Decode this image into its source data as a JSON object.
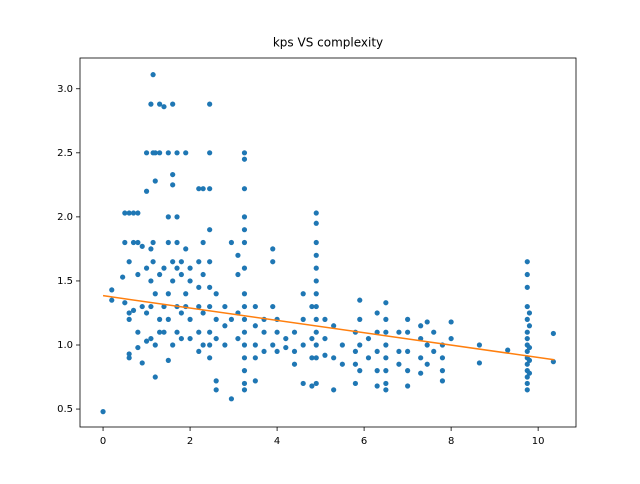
{
  "chart_data": {
    "type": "scatter",
    "title": "kps VS complexity",
    "xlim": [
      -0.53,
      10.87
    ],
    "xticks": [
      0,
      2,
      4,
      6,
      8,
      10
    ],
    "ylim": [
      0.36,
      3.24
    ],
    "yticks": [
      0.5,
      {
        "value": 1,
        "label": "1.0"
      },
      1.5,
      {
        "value": 2,
        "label": "2.0"
      },
      2.5,
      {
        "value": 3,
        "label": "3.0"
      }
    ],
    "series": [
      {
        "type": "scatter",
        "color": "#1f77b4",
        "x": [
          0,
          0.2,
          0.2,
          0.45,
          0.5,
          0.5,
          0.5,
          0.6,
          0.6,
          0.6,
          0.6,
          0.6,
          0.6,
          0.7,
          0.7,
          0.7,
          0.8,
          0.8,
          0.8,
          0.8,
          0.8,
          0.9,
          0.9,
          0.9,
          1.0,
          1.0,
          1.0,
          1.0,
          1.0,
          1.1,
          1.1,
          1.1,
          1.1,
          1.1,
          1.15,
          1.15,
          1.15,
          1.15,
          1.2,
          1.2,
          1.2,
          1.2,
          1.2,
          1.3,
          1.3,
          1.3,
          1.3,
          1.3,
          1.4,
          1.4,
          1.4,
          1.4,
          1.5,
          1.5,
          1.5,
          1.5,
          1.5,
          1.5,
          1.6,
          1.6,
          1.6,
          1.6,
          1.6,
          1.6,
          1.7,
          1.7,
          1.7,
          1.7,
          1.7,
          1.7,
          1.8,
          1.8,
          1.8,
          1.8,
          1.9,
          1.9,
          1.9,
          1.9,
          2.0,
          2.0,
          2.0,
          2.0,
          2.2,
          2.2,
          2.2,
          2.2,
          2.2,
          2.2,
          2.3,
          2.3,
          2.3,
          2.3,
          2.3,
          2.45,
          2.45,
          2.45,
          2.45,
          2.45,
          2.45,
          2.45,
          2.45,
          2.45,
          2.45,
          2.6,
          2.6,
          2.6,
          2.6,
          2.6,
          2.8,
          2.8,
          2.8,
          2.95,
          2.95,
          2.95,
          3.1,
          3.1,
          3.1,
          3.1,
          3.25,
          3.25,
          3.25,
          3.25,
          3.25,
          3.25,
          3.25,
          3.25,
          3.25,
          3.25,
          3.25,
          3.25,
          3.25,
          3.25,
          3.25,
          3.25,
          3.5,
          3.5,
          3.5,
          3.5,
          3.5,
          3.7,
          3.7,
          3.7,
          3.9,
          3.9,
          3.9,
          3.9,
          4.0,
          4.0,
          4.0,
          4.2,
          4.2,
          4.4,
          4.4,
          4.4,
          4.6,
          4.6,
          4.6,
          4.6,
          4.8,
          4.8,
          4.8,
          4.8,
          4.9,
          4.9,
          4.9,
          4.9,
          4.9,
          4.9,
          4.9,
          4.9,
          4.9,
          4.9,
          4.9,
          4.9,
          4.9,
          5.1,
          5.1,
          5.1,
          5.3,
          5.3,
          5.3,
          5.5,
          5.5,
          5.8,
          5.8,
          5.8,
          5.8,
          5.9,
          5.9,
          5.9,
          5.9,
          6.1,
          6.1,
          6.3,
          6.3,
          6.3,
          6.3,
          6.3,
          6.5,
          6.5,
          6.5,
          6.5,
          6.5,
          6.5,
          6.5,
          6.5,
          6.8,
          6.8,
          6.8,
          7.0,
          7.0,
          7.0,
          7.0,
          7.0,
          7.3,
          7.3,
          7.3,
          7.3,
          7.45,
          7.45,
          7.45,
          7.6,
          7.6,
          7.8,
          7.8,
          7.8,
          7.8,
          8.0,
          8.0,
          8.65,
          8.65,
          9.3,
          9.75,
          9.75,
          9.75,
          9.75,
          9.75,
          9.75,
          9.75,
          9.75,
          9.75,
          9.75,
          9.75,
          9.75,
          9.75,
          9.75,
          9.75,
          9.8,
          9.8,
          9.8,
          9.8,
          9.8,
          10.35,
          10.35
        ],
        "values": [
          0.48,
          1.35,
          1.43,
          1.53,
          1.33,
          2.03,
          1.8,
          1.2,
          1.25,
          0.93,
          0.9,
          1.65,
          2.03,
          1.27,
          1.8,
          2.03,
          1.8,
          1.1,
          0.98,
          1.55,
          2.03,
          0.86,
          1.77,
          1.3,
          2.2,
          2.5,
          1.25,
          1.03,
          1.6,
          2.88,
          1.05,
          1.75,
          1.5,
          1.3,
          3.11,
          1.8,
          1.65,
          2.5,
          2.28,
          1.4,
          0.75,
          1.0,
          2.5,
          2.88,
          2.5,
          1.55,
          1.2,
          1.1,
          2.86,
          1.3,
          1.6,
          1.1,
          2.5,
          1.8,
          1.4,
          0.88,
          1.2,
          2.0,
          2.88,
          2.33,
          2.25,
          1.65,
          1.5,
          1.0,
          2.5,
          2.0,
          1.8,
          1.3,
          1.1,
          1.6,
          1.55,
          1.25,
          1.65,
          1.05,
          2.5,
          1.4,
          1.75,
          1.3,
          1.6,
          1.2,
          1.5,
          1.05,
          2.22,
          1.65,
          1.3,
          1.1,
          0.95,
          1.45,
          1.55,
          1.25,
          1.0,
          1.8,
          2.22,
          2.88,
          2.5,
          2.22,
          1.9,
          1.65,
          1.45,
          1.3,
          1.1,
          1.0,
          0.9,
          0.72,
          0.65,
          1.2,
          1.4,
          1.05,
          1.15,
          1.3,
          1.0,
          0.58,
          1.8,
          1.2,
          1.05,
          1.25,
          1.55,
          1.7,
          2.5,
          2.45,
          2.22,
          2.0,
          1.9,
          1.8,
          1.6,
          1.4,
          1.3,
          1.2,
          1.1,
          1.0,
          0.9,
          0.8,
          0.7,
          0.65,
          1.3,
          1.15,
          1.0,
          0.9,
          0.72,
          1.2,
          1.1,
          0.95,
          1.75,
          1.65,
          1.3,
          1.0,
          1.2,
          1.1,
          0.95,
          1.05,
          0.98,
          1.1,
          0.95,
          0.85,
          1.4,
          1.2,
          0.7,
          1.0,
          1.3,
          1.05,
          0.9,
          0.68,
          2.03,
          1.95,
          1.8,
          1.7,
          1.6,
          1.5,
          1.4,
          1.3,
          1.2,
          1.1,
          1.0,
          0.9,
          0.7,
          1.2,
          1.05,
          0.92,
          1.15,
          0.9,
          0.65,
          1.0,
          0.85,
          1.1,
          0.95,
          0.85,
          0.7,
          1.35,
          1.2,
          1.0,
          0.8,
          1.05,
          0.9,
          1.25,
          1.1,
          0.95,
          0.8,
          0.68,
          1.33,
          1.2,
          1.1,
          1.0,
          0.9,
          0.8,
          0.7,
          0.65,
          1.1,
          0.95,
          0.85,
          1.2,
          1.1,
          0.95,
          0.8,
          0.68,
          1.15,
          1.05,
          0.9,
          0.78,
          1.18,
          1.0,
          0.85,
          1.1,
          0.95,
          1.0,
          0.9,
          0.8,
          0.72,
          1.18,
          1.05,
          1.0,
          0.86,
          0.96,
          1.65,
          1.55,
          1.45,
          1.3,
          1.2,
          1.1,
          1.05,
          1.0,
          0.95,
          0.9,
          0.85,
          0.8,
          0.75,
          0.7,
          0.65,
          1.25,
          1.15,
          0.98,
          0.88,
          0.78,
          1.09,
          0.87
        ]
      },
      {
        "type": "line",
        "color": "#ff7f0e",
        "x": [
          0,
          10.37
        ],
        "values": [
          1.385,
          0.885
        ]
      }
    ]
  }
}
